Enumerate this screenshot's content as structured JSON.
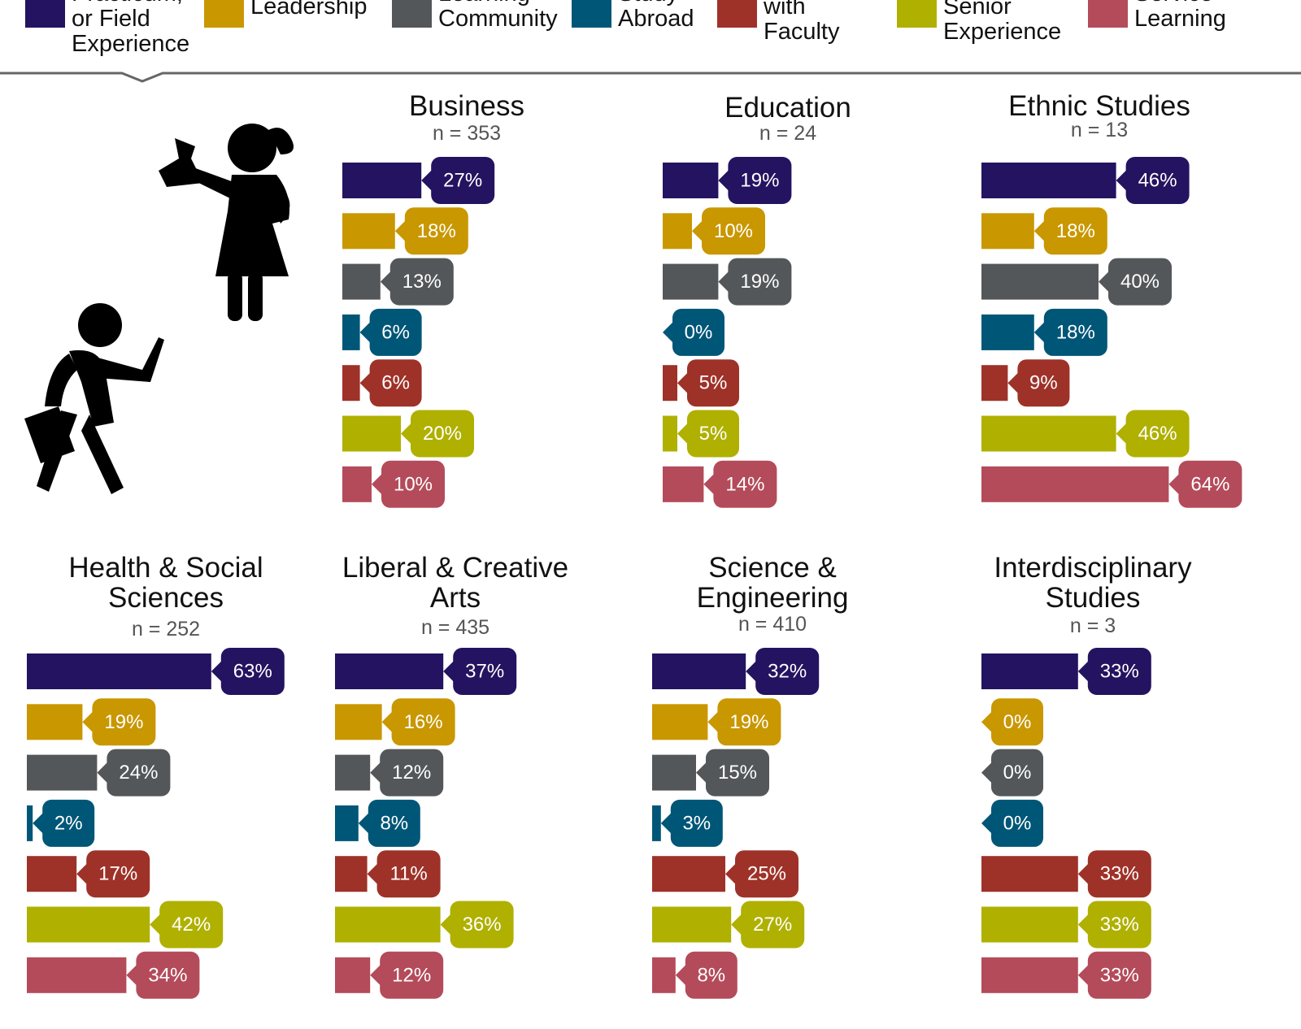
{
  "legend": [
    {
      "name": "Internship, Practicum, or Field Experience",
      "color": "#241360"
    },
    {
      "name": "Leadership",
      "color": "#c99700"
    },
    {
      "name": "Learning Community",
      "color": "#54575a"
    },
    {
      "name": "Study Abroad",
      "color": "#005677"
    },
    {
      "name": "Research with Faculty",
      "color": "#9e3228"
    },
    {
      "name": "Culminating Senior Experience",
      "color": "#afb000"
    },
    {
      "name": "Service Learning",
      "color": "#b44b5a"
    }
  ],
  "chart_data": [
    {
      "type": "bar",
      "title": "Business",
      "subtitle": "n = 353",
      "values": [
        27,
        18,
        13,
        6,
        6,
        20,
        10
      ],
      "value_labels": [
        "27%",
        "18%",
        "13%",
        "6%",
        "6%",
        "20%",
        "10%"
      ]
    },
    {
      "type": "bar",
      "title": "Education",
      "subtitle": "n = 24",
      "values": [
        19,
        10,
        19,
        0,
        5,
        5,
        14
      ],
      "value_labels": [
        "19%",
        "10%",
        "19%",
        "0%",
        "5%",
        "5%",
        "14%"
      ]
    },
    {
      "type": "bar",
      "title": "Ethnic Studies",
      "subtitle": "n = 13",
      "values": [
        46,
        18,
        40,
        18,
        9,
        46,
        64
      ],
      "value_labels": [
        "46%",
        "18%",
        "40%",
        "18%",
        "9%",
        "46%",
        "64%"
      ]
    },
    {
      "type": "bar",
      "title": "Health & Social Sciences",
      "subtitle": "n = 252",
      "values": [
        63,
        19,
        24,
        2,
        17,
        42,
        34
      ],
      "value_labels": [
        "63%",
        "19%",
        "24%",
        "2%",
        "17%",
        "42%",
        "34%"
      ]
    },
    {
      "type": "bar",
      "title": "Liberal & Creative Arts",
      "subtitle": "n = 435",
      "values": [
        37,
        16,
        12,
        8,
        11,
        36,
        12
      ],
      "value_labels": [
        "37%",
        "16%",
        "12%",
        "8%",
        "11%",
        "36%",
        "12%"
      ]
    },
    {
      "type": "bar",
      "title": "Science & Engineering",
      "subtitle": "n = 410",
      "values": [
        32,
        19,
        15,
        3,
        25,
        27,
        8
      ],
      "value_labels": [
        "32%",
        "19%",
        "15%",
        "3%",
        "25%",
        "27%",
        "8%"
      ]
    },
    {
      "type": "bar",
      "title": "Interdisciplinary Studies",
      "subtitle": "n = 3",
      "values": [
        33,
        0,
        0,
        0,
        33,
        33,
        33
      ],
      "value_labels": [
        "33%",
        "0%",
        "0%",
        "0%",
        "33%",
        "33%",
        "33%"
      ]
    }
  ]
}
